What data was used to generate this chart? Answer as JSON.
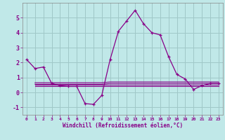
{
  "xlabel": "Windchill (Refroidissement éolien,°C)",
  "bg_color": "#c0e8e8",
  "grid_color": "#a0c8c8",
  "line_color": "#880088",
  "xlim": [
    -0.5,
    23.5
  ],
  "ylim": [
    -1.5,
    6.0
  ],
  "yticks": [
    -1,
    0,
    1,
    2,
    3,
    4,
    5
  ],
  "xticks": [
    0,
    1,
    2,
    3,
    4,
    5,
    6,
    7,
    8,
    9,
    10,
    11,
    12,
    13,
    14,
    15,
    16,
    17,
    18,
    19,
    20,
    21,
    22,
    23
  ],
  "series1_x": [
    0,
    1,
    2,
    3,
    4,
    5,
    6,
    7,
    8,
    9,
    10,
    11,
    12,
    13,
    14,
    15,
    16,
    17,
    18,
    19,
    20,
    21,
    22,
    23
  ],
  "series1_y": [
    2.2,
    1.6,
    1.7,
    0.6,
    0.45,
    0.4,
    0.4,
    -0.75,
    -0.8,
    -0.2,
    2.2,
    4.1,
    4.8,
    5.5,
    4.6,
    4.0,
    3.85,
    2.4,
    1.2,
    0.9,
    0.2,
    0.45,
    0.6,
    0.6
  ],
  "series2_x": [
    1,
    2,
    3,
    4,
    5,
    6,
    7,
    8,
    9,
    10,
    11,
    12,
    13,
    14,
    15,
    16,
    17,
    18,
    19,
    20,
    21,
    22,
    23
  ],
  "series2_y": [
    0.65,
    0.65,
    0.65,
    0.65,
    0.65,
    0.65,
    0.65,
    0.65,
    0.65,
    0.7,
    0.7,
    0.7,
    0.7,
    0.7,
    0.7,
    0.7,
    0.7,
    0.7,
    0.7,
    0.7,
    0.7,
    0.7,
    0.7
  ],
  "series3_x": [
    1,
    2,
    3,
    4,
    5,
    6,
    7,
    8,
    9,
    10,
    11,
    12,
    13,
    14,
    15,
    16,
    17,
    18,
    19,
    20,
    21,
    22,
    23
  ],
  "series3_y": [
    0.55,
    0.55,
    0.55,
    0.55,
    0.55,
    0.55,
    0.55,
    0.55,
    0.55,
    0.6,
    0.6,
    0.6,
    0.6,
    0.6,
    0.6,
    0.6,
    0.6,
    0.6,
    0.6,
    0.6,
    0.6,
    0.6,
    0.6
  ],
  "series4_x": [
    1,
    2,
    3,
    4,
    5,
    6,
    7,
    8,
    9,
    10,
    11,
    12,
    13,
    14,
    15,
    16,
    17,
    18,
    19,
    20,
    21,
    22,
    23
  ],
  "series4_y": [
    0.5,
    0.5,
    0.5,
    0.5,
    0.5,
    0.5,
    0.5,
    0.5,
    0.5,
    0.5,
    0.5,
    0.5,
    0.5,
    0.5,
    0.5,
    0.5,
    0.5,
    0.5,
    0.5,
    0.5,
    0.5,
    0.5,
    0.5
  ],
  "series5_x": [
    1,
    2,
    3,
    4,
    5,
    6,
    7,
    8,
    9,
    10,
    11,
    12,
    13,
    14,
    15,
    16,
    17,
    18,
    19,
    20,
    21,
    22,
    23
  ],
  "series5_y": [
    0.42,
    0.42,
    0.42,
    0.42,
    0.42,
    0.42,
    0.42,
    0.42,
    0.42,
    0.42,
    0.42,
    0.42,
    0.42,
    0.42,
    0.42,
    0.42,
    0.42,
    0.42,
    0.42,
    0.42,
    0.42,
    0.42,
    0.42
  ]
}
